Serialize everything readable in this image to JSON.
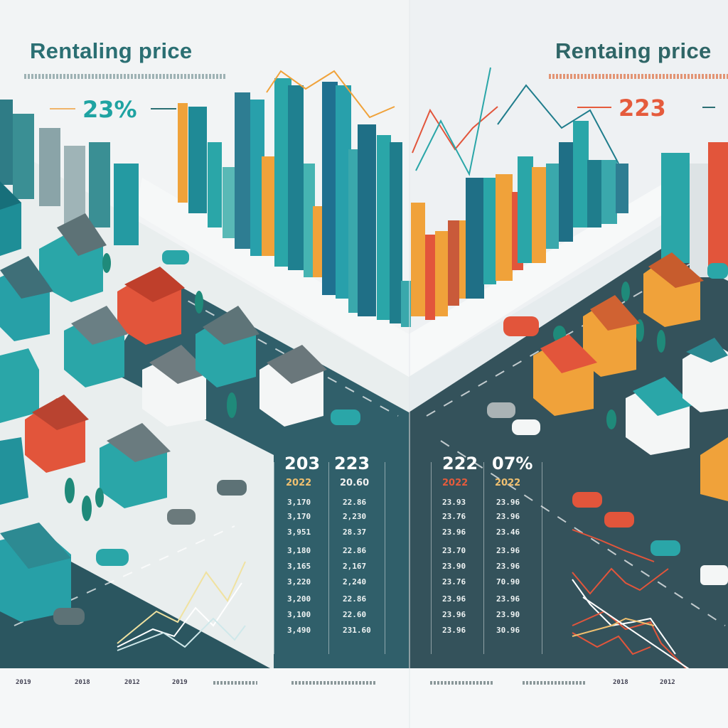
{
  "left": {
    "title": "Rentaling price",
    "stat": "23%",
    "table": {
      "headers": [
        "203",
        "223"
      ],
      "subheaders": [
        "2022",
        "20.60"
      ],
      "col1": [
        "3,170",
        "3,170",
        "3,951",
        "3,180",
        "3,165",
        "3,220",
        "3,200",
        "3,100",
        "3,490"
      ],
      "col2": [
        "22.86",
        "2,230",
        "28.37",
        "22.86",
        "2,167",
        "2,240",
        "22.86",
        "22.60",
        "231.60"
      ]
    },
    "footer_years": [
      "2019",
      "2018",
      "2012",
      "2019"
    ]
  },
  "right": {
    "title": "Rentaing price",
    "stat": "223",
    "table": {
      "headers": [
        "222",
        "07%"
      ],
      "subheaders": [
        "2022",
        "2022"
      ],
      "col1": [
        "23.93",
        "23.76",
        "23.96",
        "23.70",
        "23.90",
        "23.76",
        "23.96",
        "23.96",
        "23.96"
      ],
      "col2": [
        "23.96",
        "23.96",
        "23.46",
        "23.96",
        "23.96",
        "70.90",
        "23.96",
        "23.90",
        "30.96"
      ]
    },
    "footer_years": [
      "2018",
      "2012"
    ]
  },
  "colors": {
    "teal": "#2aa6a8",
    "dark_teal": "#1f6f86",
    "orange": "#f0a23a",
    "red": "#e2553b",
    "road": "#2f5d67"
  }
}
